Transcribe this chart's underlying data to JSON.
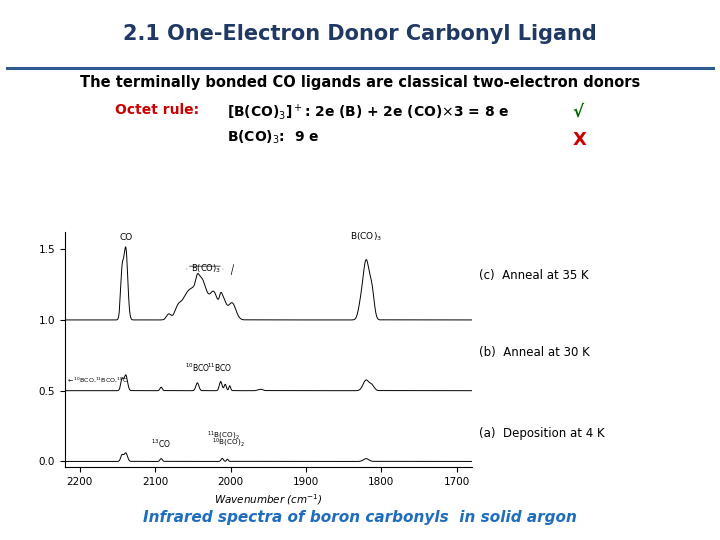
{
  "title": "2.1 One-Electron Donor Carbonyl Ligand",
  "title_color": "#1F3864",
  "title_fontsize": 15,
  "subtitle": "The terminally bonded CO ligands are classical two-electron donors",
  "subtitle_fontsize": 10.5,
  "octet_label": "Octet rule:",
  "octet_color": "#CC0000",
  "checkmark_color": "#006600",
  "xmark_color": "#CC0000",
  "footer": "Infrared spectra of boron carbonyls  in solid argon",
  "footer_color": "#1F6DBF",
  "footer_fontsize": 11,
  "bg_color": "#FFFFFF",
  "divider_color": "#2E5A8E",
  "anneal35_label": "(c)  Anneal at 35 K",
  "anneal30_label": "(b)  Anneal at 30 K",
  "deposition_label": "(a)  Deposition at 4 K",
  "xlabel": "Wavenumber (cm$^{-1}$)"
}
